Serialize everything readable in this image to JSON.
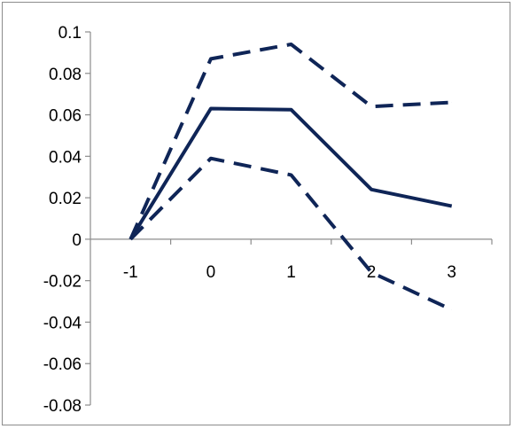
{
  "chart_data": {
    "type": "line",
    "x": [
      -1,
      0,
      1,
      2,
      3
    ],
    "x_tick_labels": [
      "-1",
      "0",
      "1",
      "2",
      "3"
    ],
    "y_tick_labels": [
      "0.1",
      "0.08",
      "0.06",
      "0.04",
      "0.02",
      "0",
      "-0.02",
      "-0.04",
      "-0.06",
      "-0.08"
    ],
    "y_ticks": [
      0.1,
      0.08,
      0.06,
      0.04,
      0.02,
      0,
      -0.02,
      -0.04,
      -0.06,
      -0.08
    ],
    "ylim": [
      -0.08,
      0.1
    ],
    "xlim": [
      -1.5,
      3.5
    ],
    "grid": false,
    "legend": "none",
    "series": [
      {
        "key": "estimate",
        "style": "solid",
        "color": "#0f2557",
        "values": [
          0,
          0.063,
          0.0625,
          0.024,
          0.016
        ]
      },
      {
        "key": "upper",
        "style": "dashed",
        "color": "#0f2557",
        "values": [
          0,
          0.087,
          0.094,
          0.064,
          0.066
        ]
      },
      {
        "key": "lower",
        "style": "dashed",
        "color": "#0f2557",
        "values": [
          0,
          0.039,
          0.031,
          -0.016,
          -0.034
        ]
      }
    ]
  }
}
